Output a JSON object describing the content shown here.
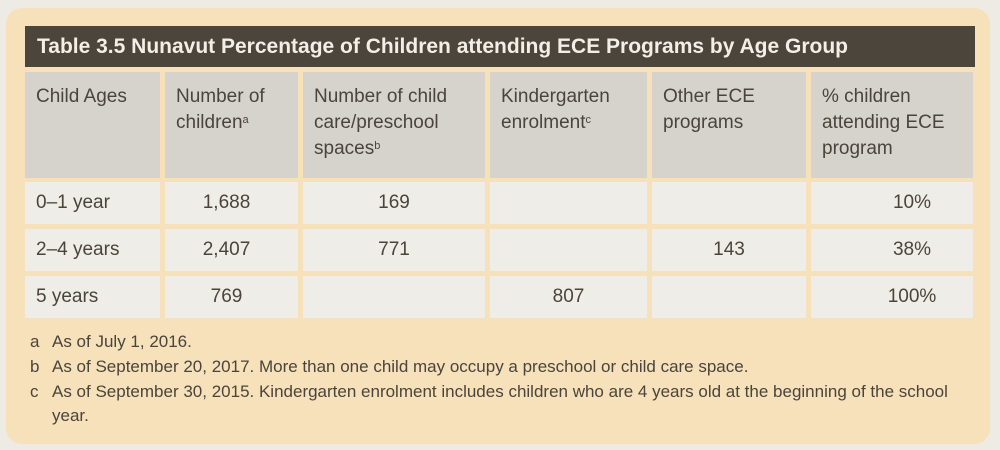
{
  "title": "Table 3.5  Nunavut Percentage of Children attending ECE Programs by Age Group",
  "headers": [
    {
      "label": "Child Ages",
      "sup": ""
    },
    {
      "label": "Number of children",
      "sup": "a"
    },
    {
      "label": "Number of child care/preschool spaces",
      "sup": "b"
    },
    {
      "label": "Kindergarten enrolment",
      "sup": "c"
    },
    {
      "label": "Other ECE programs",
      "sup": ""
    },
    {
      "label": "% children attending ECE program",
      "sup": ""
    }
  ],
  "rows": [
    [
      "0–1 year",
      "1,688",
      "169",
      "",
      "",
      "10%"
    ],
    [
      "2–4 years",
      "2,407",
      "771",
      "",
      "143",
      "38%"
    ],
    [
      "5 years",
      "769",
      "",
      "807",
      "",
      "100%"
    ]
  ],
  "footnotes": [
    {
      "key": "a",
      "text": "As of July 1, 2016."
    },
    {
      "key": "b",
      "text": "As of September 20, 2017. More than one child may occupy a preschool or child care space."
    },
    {
      "key": "c",
      "text": "As of September 30, 2015. Kindergarten enrolment includes children who are 4 years old at the beginning of the school year."
    }
  ]
}
